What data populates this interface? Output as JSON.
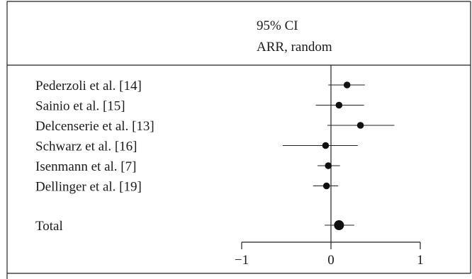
{
  "chart_data": {
    "type": "forest",
    "header": {
      "line1": "95% CI",
      "line2": "ARR, random"
    },
    "studies": [
      {
        "label": "Pederzoli et al. [14]",
        "estimate": 0.18,
        "ci_low": -0.03,
        "ci_high": 0.38
      },
      {
        "label": "Sainio et al. [15]",
        "estimate": 0.09,
        "ci_low": -0.17,
        "ci_high": 0.37
      },
      {
        "label": "Delcenserie et al. [13]",
        "estimate": 0.33,
        "ci_low": -0.04,
        "ci_high": 0.71
      },
      {
        "label": "Schwarz et al. [16]",
        "estimate": -0.06,
        "ci_low": -0.54,
        "ci_high": 0.3
      },
      {
        "label": "Isenmann et al. [7]",
        "estimate": -0.03,
        "ci_low": -0.15,
        "ci_high": 0.1
      },
      {
        "label": "Dellinger et al. [19]",
        "estimate": -0.05,
        "ci_low": -0.2,
        "ci_high": 0.08
      }
    ],
    "total": {
      "label": "Total",
      "estimate": 0.09,
      "ci_low": -0.07,
      "ci_high": 0.26
    },
    "xlim": [
      -1,
      1
    ],
    "xticks": [
      {
        "value": -1,
        "label": "−1"
      },
      {
        "value": 0,
        "label": "0"
      },
      {
        "value": 1,
        "label": "1"
      }
    ],
    "reference_line": 0
  }
}
